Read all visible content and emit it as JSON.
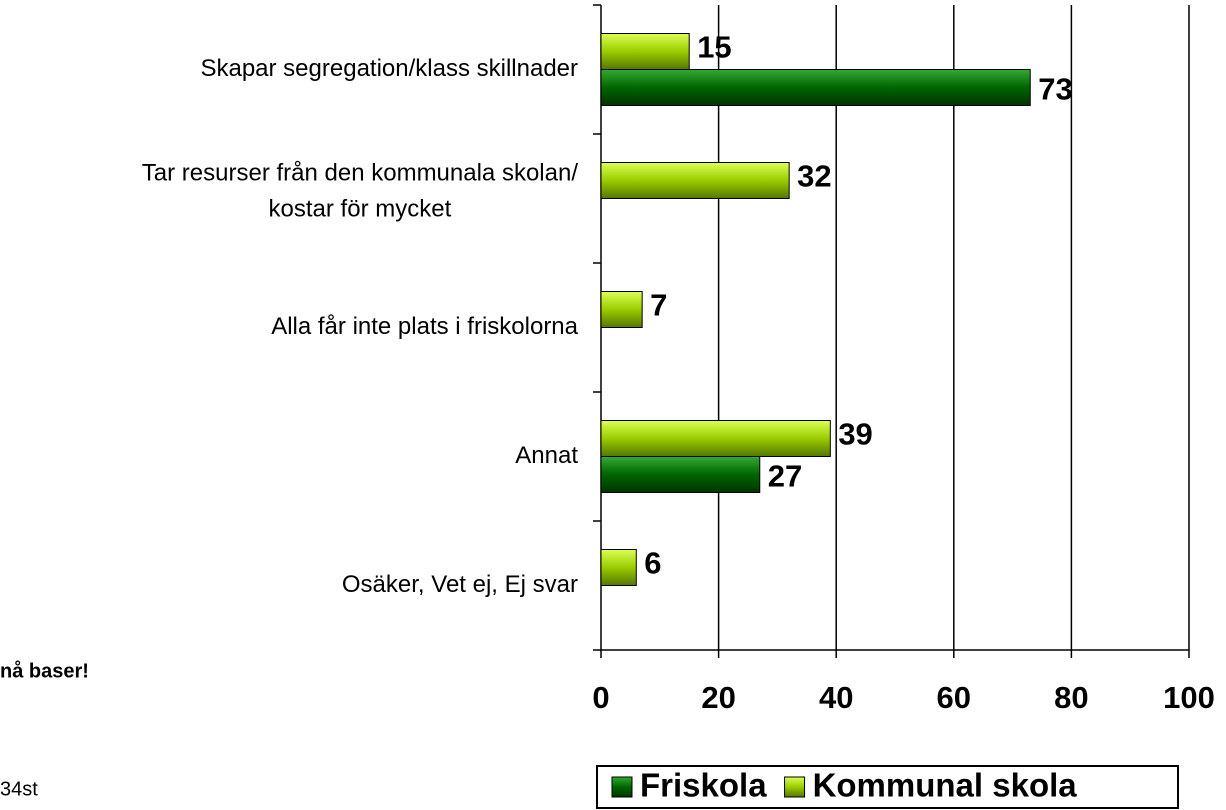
{
  "chart_data": {
    "type": "bar",
    "orientation": "horizontal",
    "categories": [
      "Skapar segregation/klass skillnader",
      "Tar resurser från den kommunala skolan/\nkostar för mycket",
      "Alla får inte plats i friskolorna",
      "Annat",
      "Osäker, Vet ej, Ej svar"
    ],
    "series": [
      {
        "name": "Friskola",
        "color": "#006600",
        "values": [
          73,
          null,
          null,
          27,
          null
        ]
      },
      {
        "name": "Kommunal skola",
        "color": "#99cc00",
        "values": [
          15,
          32,
          7,
          39,
          6
        ]
      }
    ],
    "xlim": [
      0,
      100
    ],
    "xticks": [
      0,
      20,
      40,
      60,
      80,
      100
    ],
    "grid": true,
    "legend": "bottom",
    "notes": [
      "nå baser!",
      "34st"
    ]
  }
}
